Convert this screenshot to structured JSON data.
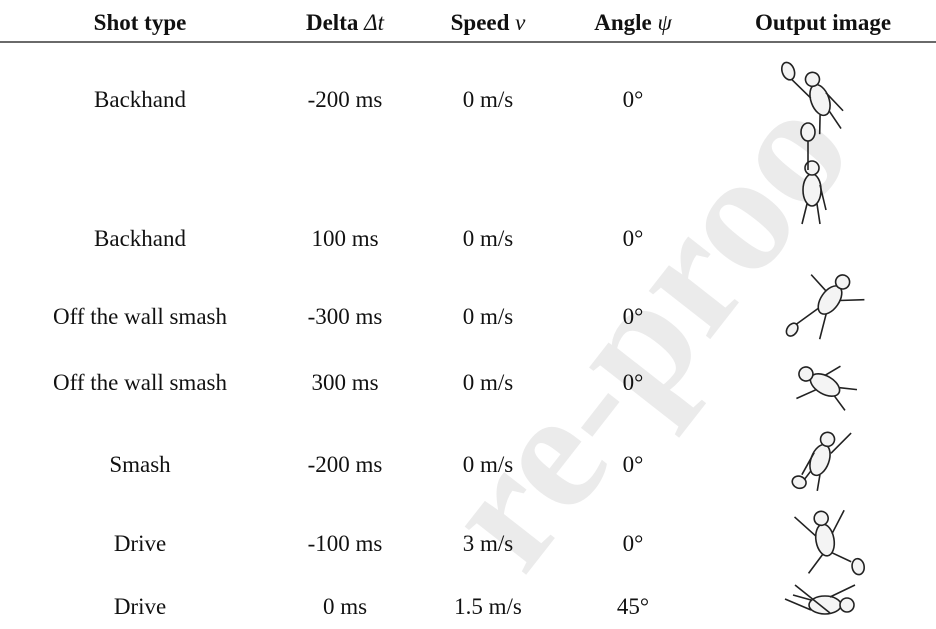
{
  "table": {
    "header": [
      {
        "text": "Shot type"
      },
      {
        "text": "Delta",
        "symbol": "Δt"
      },
      {
        "text": "Speed",
        "symbol": "v"
      },
      {
        "text": "Angle",
        "symbol": "ψ"
      },
      {
        "text": "Output image"
      }
    ],
    "rows": [
      [
        "Backhand",
        "-200 ms",
        "0 m/s",
        "0°"
      ],
      [
        "Backhand",
        "100 ms",
        "0 m/s",
        "0°"
      ],
      [
        "Off the wall smash",
        "-300 ms",
        "0 m/s",
        "0°"
      ],
      [
        "Off the wall smash",
        "300 ms",
        "0 m/s",
        "0°"
      ],
      [
        "Smash",
        "-200 ms",
        "0 m/s",
        "0°"
      ],
      [
        "Drive",
        "-100 ms",
        "3 m/s",
        "0°"
      ],
      [
        "Drive",
        "0 ms",
        "1.5 m/s",
        "45°"
      ]
    ]
  },
  "watermark": "re-proo"
}
